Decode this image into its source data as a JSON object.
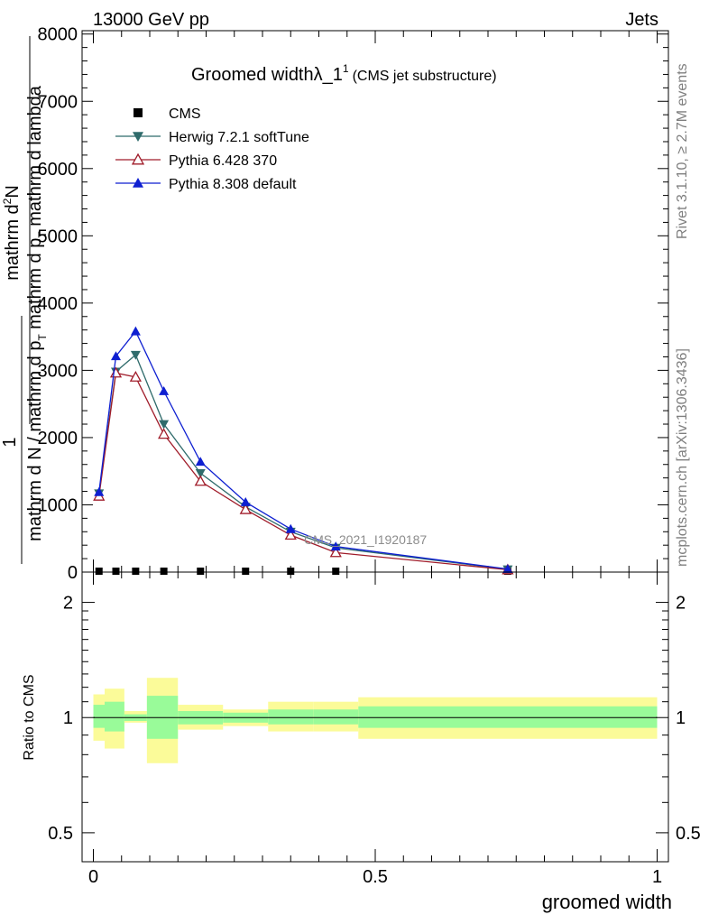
{
  "header": {
    "energy_label": "13000 GeV pp",
    "category_label": "Jets"
  },
  "side_labels": {
    "rivet": "Rivet 3.1.10, ≥ 2.7M events",
    "mcplots": "mcplots.cern.ch [arXiv:1306.3436]"
  },
  "chart_data": {
    "type": "line",
    "title": "Groomed widthλ_1",
    "title_sup": "1",
    "subtitle": "(CMS jet substructure)",
    "ylabel_numerator": "mathrm d²N",
    "ylabel_numerator_parts": {
      "base": "mathrm d",
      "sup": "2",
      "rest": "N"
    },
    "ylabel_denominator": "mathrm d p_T mathrm d lambda",
    "ylabel_denominator_parts": {
      "p1": "mathrm d p",
      "sub": "T",
      "p2": " mathrm d lambda"
    },
    "ylabel_prefactor": "1",
    "ylabel_prefactor_denominator": "mathrm d N / mathrm d p_T",
    "ylabel_prefactor_denominator_parts": {
      "p1": "mathrm d N / mathrm d p",
      "sub": "T"
    },
    "xlabel": "groomed width",
    "analysis_label": "CMS_2021_I1920187",
    "xlim": [
      -0.02,
      1.02
    ],
    "ylim": [
      0,
      8050
    ],
    "yticks": [
      0,
      1000,
      2000,
      3000,
      4000,
      5000,
      6000,
      7000,
      8000
    ],
    "xticks": [
      0,
      0.5,
      1
    ],
    "xtick_labels": [
      "0",
      "0.5",
      "1"
    ],
    "x": [
      0.01,
      0.04,
      0.075,
      0.125,
      0.19,
      0.27,
      0.35,
      0.43,
      0.735
    ],
    "series": [
      {
        "name": "CMS",
        "marker": "square-filled",
        "color": "#000000",
        "values": [
          0,
          0,
          0,
          0,
          0,
          0,
          0,
          0,
          0
        ]
      },
      {
        "name": "Herwig 7.2.1 softTune",
        "marker": "triangle-down-filled",
        "color": "#2f6b6b",
        "values": [
          1170,
          2980,
          3230,
          2200,
          1470,
          970,
          600,
          360,
          40
        ]
      },
      {
        "name": "Pythia 6.428 370",
        "marker": "triangle-up-open",
        "color": "#a01c2a",
        "values": [
          1130,
          2960,
          2900,
          2050,
          1350,
          930,
          550,
          290,
          35
        ]
      },
      {
        "name": "Pythia 8.308 default",
        "marker": "triangle-up-filled",
        "color": "#0e1fd1",
        "values": [
          1190,
          3210,
          3580,
          2690,
          1640,
          1040,
          640,
          380,
          45
        ]
      }
    ],
    "ratio": {
      "ylabel": "Ratio to CMS",
      "ylim_log": [
        0.42,
        2.4
      ],
      "yticks": [
        0.5,
        1,
        2
      ],
      "ytick_labels": [
        "0.5",
        "1",
        "2"
      ],
      "bin_edges": [
        0.0,
        0.02,
        0.055,
        0.095,
        0.15,
        0.23,
        0.31,
        0.39,
        0.47,
        1.0
      ],
      "stat_band": [
        [
          0.94,
          1.08
        ],
        [
          0.92,
          1.1
        ],
        [
          0.98,
          1.02
        ],
        [
          0.88,
          1.14
        ],
        [
          0.96,
          1.04
        ],
        [
          0.97,
          1.03
        ],
        [
          0.96,
          1.05
        ],
        [
          0.96,
          1.05
        ],
        [
          0.94,
          1.07
        ]
      ],
      "total_band": [
        [
          0.87,
          1.15
        ],
        [
          0.83,
          1.19
        ],
        [
          0.97,
          1.04
        ],
        [
          0.76,
          1.27
        ],
        [
          0.93,
          1.08
        ],
        [
          0.95,
          1.05
        ],
        [
          0.92,
          1.1
        ],
        [
          0.92,
          1.1
        ],
        [
          0.88,
          1.13
        ]
      ],
      "stat_color": "#99fb99",
      "total_color": "#fbfb99"
    }
  }
}
